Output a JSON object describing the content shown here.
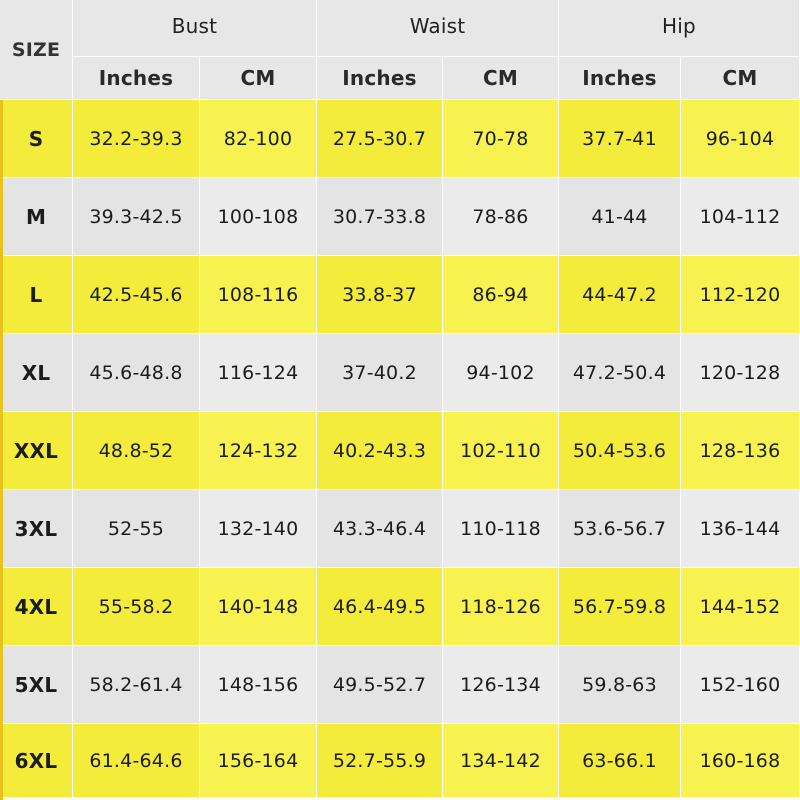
{
  "header": {
    "size_label": "SIZE",
    "groups": [
      "Bust",
      "Waist",
      "Hip"
    ],
    "units": [
      "Inches",
      "CM",
      "Inches",
      "CM",
      "Inches",
      "CM"
    ]
  },
  "colors": {
    "yellow_row": "#f4ec3a",
    "gray_row": "#e4e4e4",
    "header": "#e7e7e7"
  },
  "rows": [
    {
      "size": "S",
      "values": [
        "32.2-39.3",
        "82-100",
        "27.5-30.7",
        "70-78",
        "37.7-41",
        "96-104"
      ]
    },
    {
      "size": "M",
      "values": [
        "39.3-42.5",
        "100-108",
        "30.7-33.8",
        "78-86",
        "41-44",
        "104-112"
      ]
    },
    {
      "size": "L",
      "values": [
        "42.5-45.6",
        "108-116",
        "33.8-37",
        "86-94",
        "44-47.2",
        "112-120"
      ]
    },
    {
      "size": "XL",
      "values": [
        "45.6-48.8",
        "116-124",
        "37-40.2",
        "94-102",
        "47.2-50.4",
        "120-128"
      ]
    },
    {
      "size": "XXL",
      "values": [
        "48.8-52",
        "124-132",
        "40.2-43.3",
        "102-110",
        "50.4-53.6",
        "128-136"
      ]
    },
    {
      "size": "3XL",
      "values": [
        "52-55",
        "132-140",
        "43.3-46.4",
        "110-118",
        "53.6-56.7",
        "136-144"
      ]
    },
    {
      "size": "4XL",
      "values": [
        "55-58.2",
        "140-148",
        "46.4-49.5",
        "118-126",
        "56.7-59.8",
        "144-152"
      ]
    },
    {
      "size": "5XL",
      "values": [
        "58.2-61.4",
        "148-156",
        "49.5-52.7",
        "126-134",
        "59.8-63",
        "152-160"
      ]
    },
    {
      "size": "6XL",
      "values": [
        "61.4-64.6",
        "156-164",
        "52.7-55.9",
        "134-142",
        "63-66.1",
        "160-168"
      ]
    }
  ]
}
